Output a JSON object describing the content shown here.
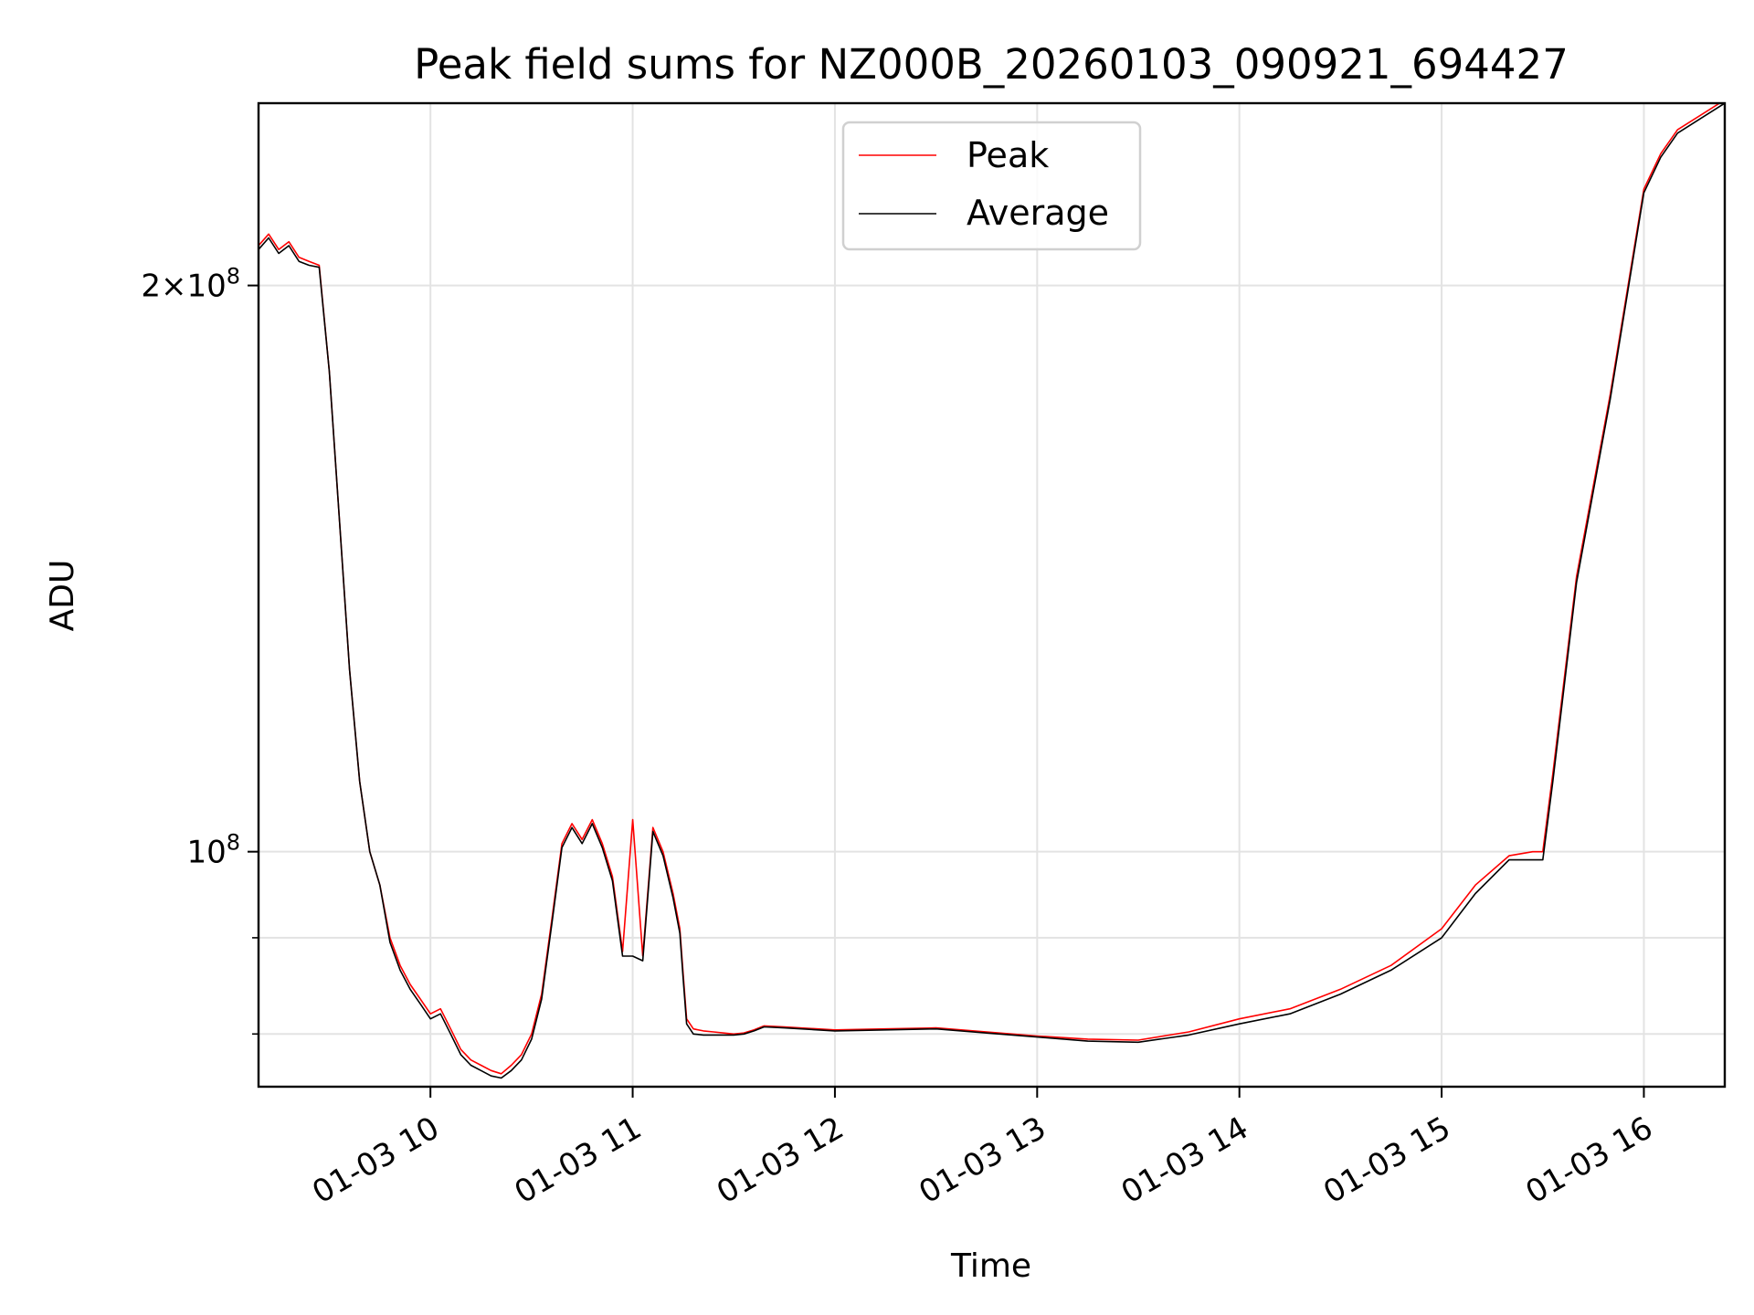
{
  "chart_data": {
    "type": "line",
    "title": "Peak field sums for NZ000B_20260103_090921_694427",
    "xlabel": "Time",
    "ylabel": "ADU",
    "x_ticks": [
      "01-03 10",
      "01-03 11",
      "01-03 12",
      "01-03 13",
      "01-03 14",
      "01-03 15",
      "01-03 16"
    ],
    "y_ticks": [
      {
        "value": 100000000,
        "mantissa": "",
        "exp": "8"
      },
      {
        "value": 200000000,
        "mantissa": "2",
        "exp": "8"
      }
    ],
    "y_minor_ticks": [
      80000000,
      90000000
    ],
    "yscale": "log",
    "xlim": [
      "01-03 09:09",
      "01-03 16:24"
    ],
    "ylim": [
      75000000,
      250000000
    ],
    "grid": true,
    "legend_location": "upper center",
    "colors": {
      "peak": "#ff0000",
      "average": "#000000"
    },
    "series": [
      {
        "name": "Peak",
        "x": [
          "09:09",
          "09:12",
          "09:15",
          "09:18",
          "09:21",
          "09:24",
          "09:27",
          "09:30",
          "09:33",
          "09:36",
          "09:39",
          "09:42",
          "09:45",
          "09:48",
          "09:51",
          "09:54",
          "09:57",
          "10:00",
          "10:03",
          "10:06",
          "10:09",
          "10:12",
          "10:15",
          "10:18",
          "10:21",
          "10:24",
          "10:27",
          "10:30",
          "10:33",
          "10:36",
          "10:39",
          "10:42",
          "10:45",
          "10:48",
          "10:51",
          "10:54",
          "10:57",
          "11:00",
          "11:03",
          "11:06",
          "11:09",
          "11:12",
          "11:14",
          "11:15",
          "11:16",
          "11:18",
          "11:21",
          "11:24",
          "11:27",
          "11:30",
          "11:33",
          "11:36",
          "11:39",
          "11:45",
          "12:00",
          "12:15",
          "12:30",
          "12:45",
          "13:00",
          "13:15",
          "13:30",
          "13:45",
          "14:00",
          "14:15",
          "14:30",
          "14:45",
          "15:00",
          "15:10",
          "15:20",
          "15:27",
          "15:30",
          "15:33",
          "15:40",
          "15:50",
          "16:00",
          "16:05",
          "16:10",
          "16:24"
        ],
        "y": [
          210000000,
          213000000,
          209000000,
          211000000,
          207000000,
          206000000,
          205000000,
          180000000,
          150000000,
          125000000,
          109000000,
          100000000,
          96000000,
          90000000,
          87000000,
          85000000,
          83500000,
          82000000,
          82500000,
          80500000,
          78500000,
          77500000,
          77000000,
          76500000,
          76200000,
          77000000,
          78000000,
          80000000,
          84000000,
          92000000,
          101000000,
          103500000,
          101500000,
          104000000,
          101000000,
          97000000,
          88500000,
          104000000,
          88000000,
          103000000,
          100000000,
          95000000,
          91000000,
          86000000,
          81500000,
          80500000,
          80300000,
          80200000,
          80100000,
          80000000,
          80100000,
          80400000,
          80800000,
          80700000,
          80400000,
          80500000,
          80600000,
          80200000,
          79800000,
          79500000,
          79400000,
          80200000,
          81500000,
          82500000,
          84500000,
          87000000,
          91000000,
          96000000,
          99500000,
          100000000,
          100000000,
          110000000,
          140000000,
          175000000,
          225000000,
          235000000,
          242000000,
          251000000
        ]
      },
      {
        "name": "Average",
        "x": [
          "09:09",
          "09:12",
          "09:15",
          "09:18",
          "09:21",
          "09:24",
          "09:27",
          "09:30",
          "09:33",
          "09:36",
          "09:39",
          "09:42",
          "09:45",
          "09:48",
          "09:51",
          "09:54",
          "09:57",
          "10:00",
          "10:03",
          "10:06",
          "10:09",
          "10:12",
          "10:15",
          "10:18",
          "10:21",
          "10:24",
          "10:27",
          "10:30",
          "10:33",
          "10:36",
          "10:39",
          "10:42",
          "10:45",
          "10:48",
          "10:51",
          "10:54",
          "10:57",
          "11:00",
          "11:03",
          "11:06",
          "11:09",
          "11:12",
          "11:14",
          "11:15",
          "11:16",
          "11:18",
          "11:21",
          "11:24",
          "11:27",
          "11:30",
          "11:33",
          "11:36",
          "11:39",
          "11:45",
          "12:00",
          "12:15",
          "12:30",
          "12:45",
          "13:00",
          "13:15",
          "13:30",
          "13:45",
          "14:00",
          "14:15",
          "14:30",
          "14:45",
          "15:00",
          "15:10",
          "15:20",
          "15:27",
          "15:30",
          "15:33",
          "15:40",
          "15:50",
          "16:00",
          "16:05",
          "16:10",
          "16:24"
        ],
        "y": [
          209000000,
          212000000,
          208000000,
          210000000,
          206000000,
          205000000,
          204500000,
          180000000,
          150000000,
          125000000,
          109000000,
          100000000,
          96000000,
          89500000,
          86500000,
          84500000,
          83000000,
          81500000,
          82000000,
          80000000,
          78000000,
          77000000,
          76500000,
          76000000,
          75800000,
          76500000,
          77500000,
          79500000,
          83500000,
          91500000,
          100500000,
          103000000,
          101000000,
          103500000,
          100500000,
          96500000,
          88000000,
          88000000,
          87500000,
          102500000,
          99500000,
          94500000,
          90500000,
          85500000,
          81000000,
          80000000,
          79900000,
          79900000,
          79900000,
          79900000,
          80000000,
          80300000,
          80700000,
          80600000,
          80300000,
          80400000,
          80500000,
          80100000,
          79700000,
          79300000,
          79200000,
          79900000,
          81000000,
          82000000,
          84000000,
          86500000,
          90000000,
          95000000,
          99000000,
          99000000,
          99000000,
          109000000,
          139000000,
          174000000,
          224000000,
          234000000,
          241000000,
          250000000
        ]
      }
    ]
  }
}
